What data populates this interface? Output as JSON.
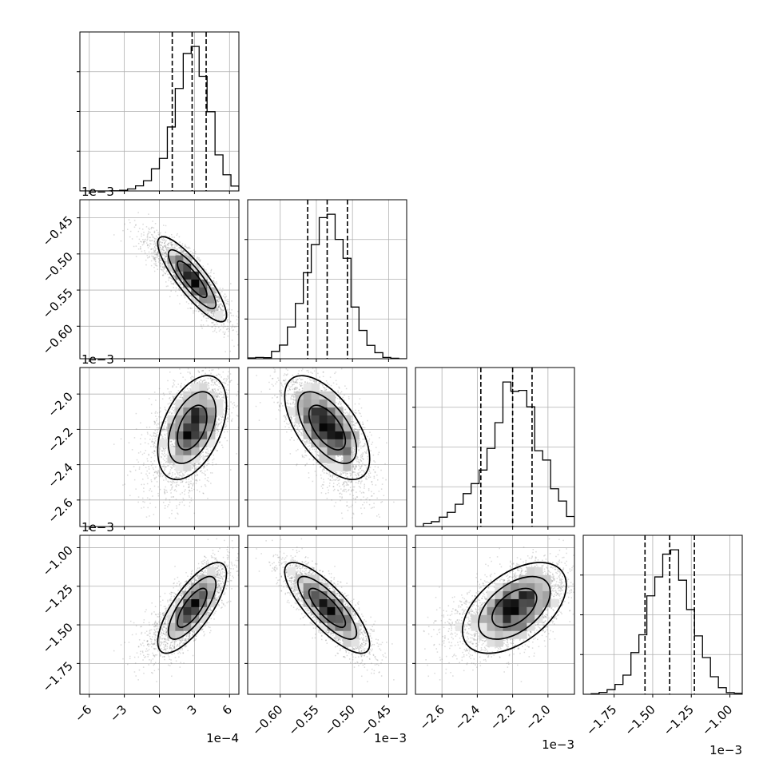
{
  "chart_data": {
    "type": "corner",
    "parameters": [
      {
        "id": "p0",
        "range": [
          -0.00068,
          0.00068
        ],
        "ticks": [
          -6,
          -3,
          0,
          3,
          6
        ],
        "tick_labels": [
          "−6",
          "−3",
          "0",
          "3",
          "6"
        ],
        "tick_values": [
          -0.0006,
          -0.0003,
          0.0,
          0.0003,
          0.0006
        ],
        "offset_label": "1e−4",
        "mean": 0.00028,
        "sd": 0.00014,
        "skew": "left",
        "quantiles": [
          0.00011,
          0.00028,
          0.0004
        ]
      },
      {
        "id": "p1",
        "range": [
          -0.000645,
          -0.000425
        ],
        "ticks": [
          -0.6,
          -0.55,
          -0.5,
          -0.45
        ],
        "tick_labels": [
          "−0.60",
          "−0.55",
          "−0.50",
          "−0.45"
        ],
        "tick_values": [
          -0.0006,
          -0.00055,
          -0.0005,
          -0.00045
        ],
        "offset_label": "1e−3",
        "mean": -0.000535,
        "sd": 2.8e-05,
        "skew": "none",
        "quantiles": [
          -0.000562,
          -0.000535,
          -0.000507
        ]
      },
      {
        "id": "p2",
        "range": [
          -0.00275,
          -0.00185
        ],
        "ticks": [
          -2.6,
          -2.4,
          -2.2,
          -2.0
        ],
        "tick_labels": [
          "−2.6",
          "−2.4",
          "−2.2",
          "−2.0"
        ],
        "tick_values": [
          -0.0026,
          -0.0024,
          -0.0022,
          -0.002
        ],
        "offset_label": "1e−3",
        "mean": -0.00219,
        "sd": 0.00014,
        "skew": "left",
        "quantiles": [
          -0.00238,
          -0.0022,
          -0.00209
        ]
      },
      {
        "id": "p3",
        "range": [
          -0.00195,
          -0.00092
        ],
        "ticks": [
          -1.75,
          -1.5,
          -1.25,
          -1.0
        ],
        "tick_labels": [
          "−1.75",
          "−1.50",
          "−1.25",
          "−1.00"
        ],
        "tick_values": [
          -0.00175,
          -0.0015,
          -0.00125,
          -0.001
        ],
        "offset_label": "1e−3",
        "mean": -0.00139,
        "sd": 0.00014,
        "skew": "none",
        "quantiles": [
          -0.00155,
          -0.00139,
          -0.00123
        ]
      }
    ],
    "correlations": [
      [
        1.0,
        -0.85,
        0.45,
        0.75
      ],
      [
        -0.85,
        1.0,
        -0.6,
        -0.8
      ],
      [
        0.45,
        -0.6,
        1.0,
        0.5
      ],
      [
        0.75,
        -0.8,
        0.5,
        1.0
      ]
    ],
    "histogram_bins": 20,
    "quantile_levels": [
      0.16,
      0.5,
      0.84
    ],
    "contour_levels": [
      "1σ",
      "1.5σ",
      "2σ"
    ],
    "grid": true
  },
  "colors": {
    "scatter": "#7a7a7a",
    "contour": "#000000",
    "grid": "#b0b0b0",
    "axis": "#000000"
  }
}
